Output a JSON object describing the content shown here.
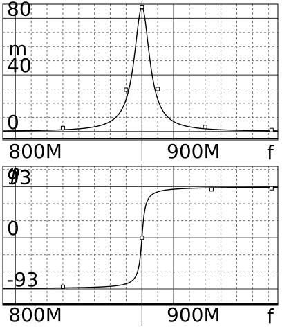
{
  "chart_data": [
    {
      "type": "line",
      "title": "",
      "xlabel": "f",
      "ylabel": "m",
      "xlim": [
        792,
        966
      ],
      "ylim": [
        -6,
        90
      ],
      "x_ticks": [
        {
          "value": 800,
          "label": "800M"
        },
        {
          "value": 900,
          "label": "900M"
        }
      ],
      "y_ticks": [
        {
          "value": 0,
          "label": "0"
        },
        {
          "value": 40,
          "label": "40"
        },
        {
          "value": 80,
          "label": "80"
        }
      ],
      "grid": true,
      "resonance": {
        "f0": 880,
        "peak": 88,
        "half_width": 5.9
      },
      "markers": [
        {
          "x": 830,
          "y": 2.4
        },
        {
          "x": 870,
          "y": 29.5
        },
        {
          "x": 880,
          "y": 88
        },
        {
          "x": 890,
          "y": 30
        },
        {
          "x": 920,
          "y": 3.2
        },
        {
          "x": 962,
          "y": 1.0
        }
      ]
    },
    {
      "type": "line",
      "title": "",
      "xlabel": "f",
      "ylabel": "φ",
      "xlim": [
        792,
        966
      ],
      "ylim": [
        -122,
        130
      ],
      "x_ticks": [
        {
          "value": 800,
          "label": "800M"
        },
        {
          "value": 900,
          "label": "900M"
        }
      ],
      "y_ticks": [
        {
          "value": -93,
          "label": "-93"
        },
        {
          "value": 0,
          "label": "0"
        },
        {
          "value": 93,
          "label": "93"
        }
      ],
      "grid": true,
      "resonance": {
        "f0": 880,
        "amplitude": 93,
        "half_width": 1.6
      },
      "markers": [
        {
          "x": 830,
          "y": -89
        },
        {
          "x": 880,
          "y": 0
        },
        {
          "x": 924,
          "y": 88
        },
        {
          "x": 962,
          "y": 90
        }
      ]
    }
  ]
}
